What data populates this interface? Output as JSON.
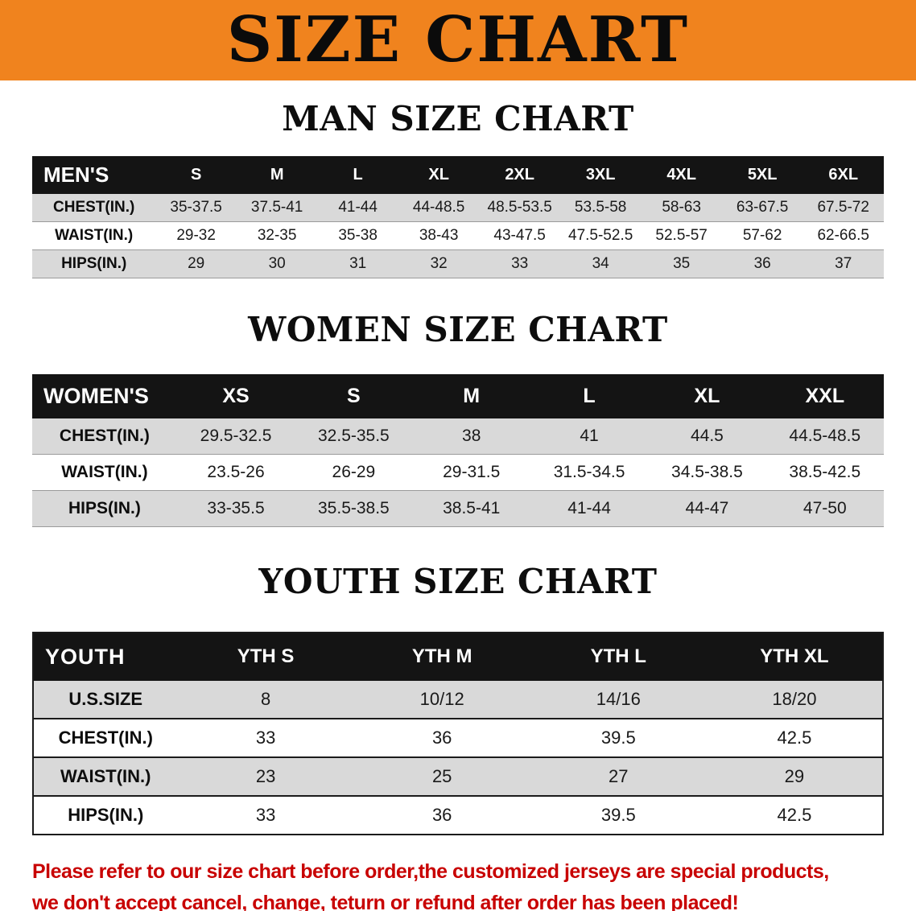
{
  "banner": {
    "title": "SIZE CHART",
    "background_color": "#F0831E",
    "text_color": "#0B0B0B"
  },
  "sections": [
    {
      "id": "men",
      "heading": "MAN SIZE CHART",
      "table": {
        "header": [
          "MEN'S",
          "S",
          "M",
          "L",
          "XL",
          "2XL",
          "3XL",
          "4XL",
          "5XL",
          "6XL"
        ],
        "rows": [
          [
            "CHEST(IN.)",
            "35-37.5",
            "37.5-41",
            "41-44",
            "44-48.5",
            "48.5-53.5",
            "53.5-58",
            "58-63",
            "63-67.5",
            "67.5-72"
          ],
          [
            "WAIST(IN.)",
            "29-32",
            "32-35",
            "35-38",
            "38-43",
            "43-47.5",
            "47.5-52.5",
            "52.5-57",
            "57-62",
            "62-66.5"
          ],
          [
            "HIPS(IN.)",
            "29",
            "30",
            "31",
            "32",
            "33",
            "34",
            "35",
            "36",
            "37"
          ]
        ]
      }
    },
    {
      "id": "women",
      "heading": "WOMEN SIZE CHART",
      "table": {
        "header": [
          "WOMEN'S",
          "XS",
          "S",
          "M",
          "L",
          "XL",
          "XXL"
        ],
        "rows": [
          [
            "CHEST(IN.)",
            "29.5-32.5",
            "32.5-35.5",
            "38",
            "41",
            "44.5",
            "44.5-48.5"
          ],
          [
            "WAIST(IN.)",
            "23.5-26",
            "26-29",
            "29-31.5",
            "31.5-34.5",
            "34.5-38.5",
            "38.5-42.5"
          ],
          [
            "HIPS(IN.)",
            "33-35.5",
            "35.5-38.5",
            "38.5-41",
            "41-44",
            "44-47",
            "47-50"
          ]
        ]
      }
    },
    {
      "id": "youth",
      "heading": "YOUTH SIZE CHART",
      "table": {
        "header": [
          "YOUTH",
          "YTH S",
          "YTH M",
          "YTH L",
          "YTH XL"
        ],
        "rows": [
          [
            "U.S.SIZE",
            "8",
            "10/12",
            "14/16",
            "18/20"
          ],
          [
            "CHEST(IN.)",
            "33",
            "36",
            "39.5",
            "42.5"
          ],
          [
            "WAIST(IN.)",
            "23",
            "25",
            "27",
            "29"
          ],
          [
            "HIPS(IN.)",
            "33",
            "36",
            "39.5",
            "42.5"
          ]
        ]
      }
    }
  ],
  "disclaimer": {
    "text_color": "#C80000",
    "lines": [
      "Please refer to our size chart before order,the customized jerseys are special products,",
      "we don't accept cancel, change, teturn or refund after order has been placed!"
    ]
  },
  "theme": {
    "table_header_bar_color": "#141414",
    "stripe_row_color": "#D9D9D9"
  }
}
